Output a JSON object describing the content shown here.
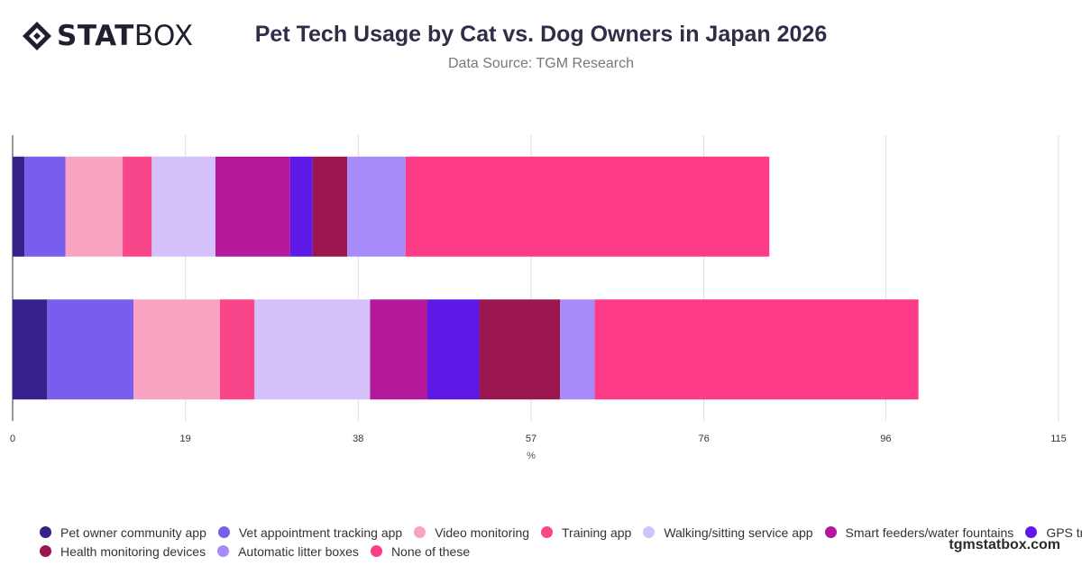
{
  "brand": {
    "logo_bold": "STAT",
    "logo_light": "BOX",
    "site": "tgmstatbox.com"
  },
  "colors": {
    "grid": "#dddddd",
    "axis": "#333333"
  },
  "chart_data": {
    "type": "bar",
    "orientation": "horizontal",
    "stacked": true,
    "title": "Pet Tech Usage by Cat vs. Dog Owners in Japan 2026",
    "subtitle": "Data Source: TGM Research",
    "xlabel": "%",
    "xlim": [
      0,
      115
    ],
    "xticks": [
      0,
      19,
      38,
      57,
      76,
      96,
      115
    ],
    "grid": true,
    "legend_position": "bottom-left",
    "categories": [
      "",
      ""
    ],
    "series": [
      {
        "name": "Pet owner community app",
        "color": "#36208c",
        "values": [
          1.3,
          3.8
        ]
      },
      {
        "name": "Vet appointment tracking app",
        "color": "#7b5ded",
        "values": [
          4.5,
          9.5
        ]
      },
      {
        "name": "Video monitoring",
        "color": "#f9a3c3",
        "values": [
          6.3,
          9.5
        ]
      },
      {
        "name": "Training app",
        "color": "#f9458a",
        "values": [
          3.2,
          3.8
        ]
      },
      {
        "name": "Walking/sitting service app",
        "color": "#d5c1fa",
        "values": [
          7.0,
          12.7
        ]
      },
      {
        "name": "Smart feeders/water fountains",
        "color": "#b3189b",
        "values": [
          8.2,
          6.3
        ]
      },
      {
        "name": "GPS trackers",
        "color": "#5f19e6",
        "values": [
          2.5,
          5.7
        ]
      },
      {
        "name": "Health monitoring devices",
        "color": "#9b154f",
        "values": [
          3.8,
          8.9
        ]
      },
      {
        "name": "Automatic litter boxes",
        "color": "#a78cf9",
        "values": [
          6.4,
          3.8
        ]
      },
      {
        "name": "None of these",
        "color": "#fd3b87",
        "values": [
          40.0,
          35.6
        ]
      }
    ]
  }
}
